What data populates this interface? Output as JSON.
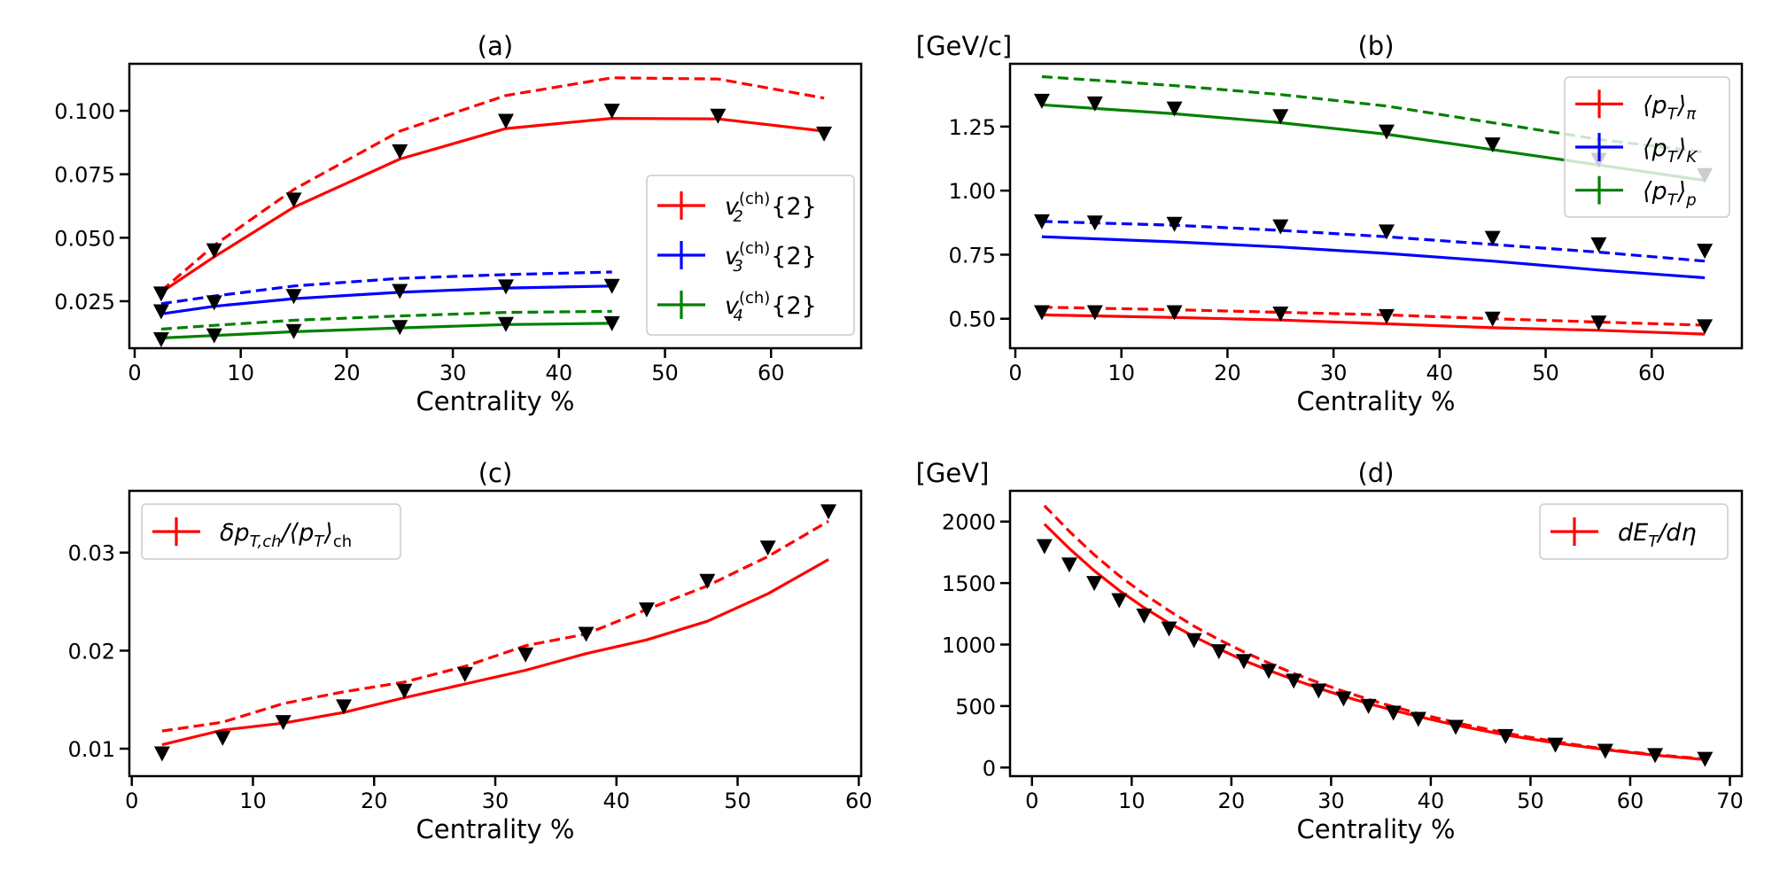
{
  "figure": {
    "background": "#ffffff"
  },
  "chart_data": [
    {
      "panel": "a",
      "type": "line",
      "title": "(a)",
      "unit_label": "",
      "xlabel": "Centrality %",
      "xlim": [
        -0.5,
        68.5
      ],
      "ylim": [
        0.0065,
        0.1185
      ],
      "xticks": [
        0,
        10,
        20,
        30,
        40,
        50,
        60
      ],
      "xtick_labels": [
        "0",
        "10",
        "20",
        "30",
        "40",
        "50",
        "60"
      ],
      "yticks": [
        0.025,
        0.05,
        0.075,
        0.1
      ],
      "ytick_labels": [
        "0.025",
        "0.050",
        "0.075",
        "0.100"
      ],
      "legend": {
        "position": "center-right",
        "entries": [
          {
            "label": "v2(ch){2}",
            "base": "v",
            "sub": "2",
            "sup": "(ch)",
            "tail": "{2}",
            "color": "#ff0000"
          },
          {
            "label": "v3(ch){2}",
            "base": "v",
            "sub": "3",
            "sup": "(ch)",
            "tail": "{2}",
            "color": "#0000ff"
          },
          {
            "label": "v4(ch){2}",
            "base": "v",
            "sub": "4",
            "sup": "(ch)",
            "tail": "{2}",
            "color": "#008000"
          }
        ]
      },
      "series": [
        {
          "color": "#ff0000",
          "style": "solid",
          "x": [
            2.5,
            7.5,
            15,
            25,
            35,
            45,
            55,
            65
          ],
          "y": [
            0.0285,
            0.0425,
            0.062,
            0.081,
            0.093,
            0.097,
            0.0968,
            0.092
          ]
        },
        {
          "color": "#ff0000",
          "style": "dashed",
          "x": [
            2.5,
            7.5,
            15,
            25,
            35,
            45,
            55,
            65
          ],
          "y": [
            0.029,
            0.047,
            0.069,
            0.092,
            0.106,
            0.113,
            0.1125,
            0.105
          ]
        },
        {
          "color": "#0000ff",
          "style": "solid",
          "x": [
            2.5,
            7.5,
            15,
            25,
            35,
            45
          ],
          "y": [
            0.02,
            0.023,
            0.026,
            0.0285,
            0.0302,
            0.031
          ]
        },
        {
          "color": "#0000ff",
          "style": "dashed",
          "x": [
            2.5,
            7.5,
            15,
            25,
            35,
            45
          ],
          "y": [
            0.024,
            0.027,
            0.031,
            0.034,
            0.0355,
            0.0365
          ]
        },
        {
          "color": "#008000",
          "style": "solid",
          "x": [
            2.5,
            7.5,
            15,
            25,
            35,
            45
          ],
          "y": [
            0.0105,
            0.0115,
            0.013,
            0.0145,
            0.0158,
            0.0163
          ]
        },
        {
          "color": "#008000",
          "style": "dashed",
          "x": [
            2.5,
            7.5,
            15,
            25,
            35,
            45
          ],
          "y": [
            0.014,
            0.0155,
            0.0175,
            0.0192,
            0.0206,
            0.021
          ]
        }
      ],
      "markers": [
        {
          "x": [
            2.5,
            7.5,
            15,
            25,
            35,
            45,
            55,
            65
          ],
          "y": [
            0.028,
            0.045,
            0.065,
            0.084,
            0.096,
            0.1,
            0.098,
            0.091
          ]
        },
        {
          "x": [
            2.5,
            7.5,
            15,
            25,
            35,
            45
          ],
          "y": [
            0.021,
            0.0245,
            0.027,
            0.029,
            0.0308,
            0.031
          ]
        },
        {
          "x": [
            2.5,
            7.5,
            15,
            25,
            35,
            45
          ],
          "y": [
            0.01,
            0.0115,
            0.0132,
            0.0148,
            0.016,
            0.0163
          ]
        }
      ]
    },
    {
      "panel": "b",
      "type": "line",
      "title": "(b)",
      "unit_label": "[GeV/c]",
      "xlabel": "Centrality %",
      "xlim": [
        -0.5,
        68.5
      ],
      "ylim": [
        0.385,
        1.495
      ],
      "xticks": [
        0,
        10,
        20,
        30,
        40,
        50,
        60
      ],
      "xtick_labels": [
        "0",
        "10",
        "20",
        "30",
        "40",
        "50",
        "60"
      ],
      "yticks": [
        0.5,
        0.75,
        1.0,
        1.25
      ],
      "ytick_labels": [
        "0.50",
        "0.75",
        "1.00",
        "1.25"
      ],
      "legend": {
        "position": "upper-right",
        "entries": [
          {
            "label": "⟨pT⟩π",
            "base": "⟨p",
            "sub": "T",
            "tail": "⟩",
            "sub2": "π",
            "color": "#ff0000"
          },
          {
            "label": "⟨pT⟩K",
            "base": "⟨p",
            "sub": "T",
            "tail": "⟩",
            "sub2": "K",
            "color": "#0000ff"
          },
          {
            "label": "⟨pT⟩p",
            "base": "⟨p",
            "sub": "T",
            "tail": "⟩",
            "sub2": "p",
            "color": "#008000"
          }
        ]
      },
      "series": [
        {
          "color": "#008000",
          "style": "solid",
          "x": [
            2.5,
            15,
            25,
            35,
            45,
            55,
            65
          ],
          "y": [
            1.335,
            1.3,
            1.265,
            1.22,
            1.16,
            1.1,
            1.04
          ]
        },
        {
          "color": "#008000",
          "style": "dashed",
          "x": [
            2.5,
            15,
            25,
            35,
            45,
            55,
            65
          ],
          "y": [
            1.445,
            1.41,
            1.375,
            1.33,
            1.265,
            1.2,
            1.15
          ]
        },
        {
          "color": "#0000ff",
          "style": "solid",
          "x": [
            2.5,
            15,
            25,
            35,
            45,
            55,
            65
          ],
          "y": [
            0.82,
            0.8,
            0.78,
            0.755,
            0.725,
            0.69,
            0.66
          ]
        },
        {
          "color": "#0000ff",
          "style": "dashed",
          "x": [
            2.5,
            15,
            25,
            35,
            45,
            55,
            65
          ],
          "y": [
            0.88,
            0.865,
            0.845,
            0.82,
            0.79,
            0.76,
            0.725
          ]
        },
        {
          "color": "#ff0000",
          "style": "solid",
          "x": [
            2.5,
            15,
            25,
            35,
            45,
            55,
            65
          ],
          "y": [
            0.515,
            0.505,
            0.495,
            0.48,
            0.465,
            0.455,
            0.44
          ]
        },
        {
          "color": "#ff0000",
          "style": "dashed",
          "x": [
            2.5,
            15,
            25,
            35,
            45,
            55,
            65
          ],
          "y": [
            0.545,
            0.535,
            0.525,
            0.515,
            0.5,
            0.487,
            0.475
          ]
        }
      ],
      "markers": [
        {
          "x": [
            2.5,
            7.5,
            15,
            25,
            35,
            45,
            55,
            65
          ],
          "y": [
            1.35,
            1.34,
            1.32,
            1.29,
            1.23,
            1.18,
            1.12,
            1.06
          ]
        },
        {
          "x": [
            2.5,
            7.5,
            15,
            25,
            35,
            45,
            55,
            65
          ],
          "y": [
            0.88,
            0.875,
            0.87,
            0.86,
            0.84,
            0.815,
            0.79,
            0.765
          ]
        },
        {
          "x": [
            2.5,
            7.5,
            15,
            25,
            35,
            45,
            55,
            65
          ],
          "y": [
            0.525,
            0.525,
            0.525,
            0.52,
            0.51,
            0.5,
            0.485,
            0.47
          ]
        }
      ]
    },
    {
      "panel": "c",
      "type": "line",
      "title": "(c)",
      "unit_label": "",
      "xlabel": "Centrality %",
      "xlim": [
        -0.2,
        60.2
      ],
      "ylim": [
        0.0072,
        0.0363
      ],
      "xticks": [
        0,
        10,
        20,
        30,
        40,
        50,
        60
      ],
      "xtick_labels": [
        "0",
        "10",
        "20",
        "30",
        "40",
        "50",
        "60"
      ],
      "yticks": [
        0.01,
        0.02,
        0.03
      ],
      "ytick_labels": [
        "0.01",
        "0.02",
        "0.03"
      ],
      "legend": {
        "position": "upper-left",
        "entries": [
          {
            "label": "δpT,ch/⟨pT⟩ch",
            "base": "δp",
            "sub": "T,ch",
            "tail": "/⟨p",
            "sub2": "T",
            "tail2": "⟩",
            "sub3": "ch",
            "color": "#ff0000"
          }
        ]
      },
      "series": [
        {
          "color": "#ff0000",
          "style": "solid",
          "x": [
            2.5,
            7.5,
            12.5,
            17.5,
            22.5,
            27.5,
            32.5,
            37.5,
            42.5,
            47.5,
            52.5,
            57.5
          ],
          "y": [
            0.0104,
            0.0119,
            0.0126,
            0.0137,
            0.0152,
            0.0166,
            0.018,
            0.0197,
            0.0211,
            0.023,
            0.0258,
            0.0293
          ]
        },
        {
          "color": "#ff0000",
          "style": "dashed",
          "x": [
            2.5,
            7.5,
            12.5,
            17.5,
            22.5,
            27.5,
            32.5,
            37.5,
            42.5,
            47.5,
            52.5,
            57.5
          ],
          "y": [
            0.0118,
            0.0127,
            0.0146,
            0.0158,
            0.0168,
            0.0184,
            0.0205,
            0.0217,
            0.0242,
            0.0266,
            0.0296,
            0.0332
          ]
        }
      ],
      "markers": [
        {
          "x": [
            2.5,
            7.5,
            12.5,
            17.5,
            22.5,
            27.5,
            32.5,
            37.5,
            42.5,
            47.5,
            52.5,
            57.5
          ],
          "y": [
            0.0095,
            0.0111,
            0.0127,
            0.0143,
            0.0159,
            0.0176,
            0.0196,
            0.0217,
            0.0242,
            0.0271,
            0.0305,
            0.0342
          ]
        }
      ]
    },
    {
      "panel": "d",
      "type": "line",
      "title": "(d)",
      "unit_label": "[GeV]",
      "xlabel": "Centrality %",
      "xlim": [
        -2.2,
        71.2
      ],
      "ylim": [
        -70,
        2250
      ],
      "xticks": [
        0,
        10,
        20,
        30,
        40,
        50,
        60,
        70
      ],
      "xtick_labels": [
        "0",
        "10",
        "20",
        "30",
        "40",
        "50",
        "60",
        "70"
      ],
      "yticks": [
        0,
        500,
        1000,
        1500,
        2000
      ],
      "ytick_labels": [
        "0",
        "500",
        "1000",
        "1500",
        "2000"
      ],
      "legend": {
        "position": "upper-right",
        "entries": [
          {
            "label": "dET/dη",
            "base": "dE",
            "sub": "T",
            "tail": "/dη",
            "color": "#ff0000"
          }
        ]
      },
      "series": [
        {
          "color": "#ff0000",
          "style": "solid",
          "x": [
            1.25,
            3.75,
            6.25,
            8.75,
            11.25,
            13.75,
            16.25,
            18.75,
            21.25,
            23.75,
            26.25,
            28.75,
            31.25,
            33.75,
            36.25,
            38.75,
            42.5,
            47.5,
            52.5,
            57.5,
            62.5,
            67.5
          ],
          "y": [
            1980,
            1780,
            1600,
            1440,
            1300,
            1175,
            1065,
            965,
            870,
            790,
            715,
            645,
            580,
            520,
            465,
            415,
            345,
            265,
            200,
            145,
            100,
            65
          ]
        },
        {
          "color": "#ff0000",
          "style": "dashed",
          "x": [
            1.25,
            3.75,
            6.25,
            8.75,
            11.25,
            13.75,
            16.25,
            18.75,
            21.25,
            23.75,
            26.25,
            28.75,
            31.25,
            33.75,
            36.25,
            38.75,
            42.5,
            47.5,
            52.5,
            57.5,
            62.5,
            67.5
          ],
          "y": [
            2130,
            1920,
            1730,
            1560,
            1410,
            1275,
            1150,
            1040,
            940,
            850,
            765,
            690,
            620,
            555,
            495,
            440,
            365,
            280,
            210,
            150,
            105,
            70
          ]
        }
      ],
      "markers": [
        {
          "x": [
            1.25,
            3.75,
            6.25,
            8.75,
            11.25,
            13.75,
            16.25,
            18.75,
            21.25,
            23.75,
            26.25,
            28.75,
            31.25,
            33.75,
            36.25,
            38.75,
            42.5,
            47.5,
            52.5,
            57.5,
            62.5,
            67.5
          ],
          "y": [
            1800,
            1650,
            1500,
            1360,
            1235,
            1130,
            1035,
            945,
            865,
            785,
            705,
            625,
            560,
            500,
            445,
            395,
            330,
            255,
            185,
            135,
            100,
            70
          ]
        }
      ]
    }
  ]
}
